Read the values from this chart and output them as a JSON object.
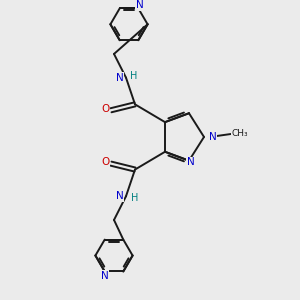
{
  "bg_color": "#ebebeb",
  "bond_color": "#1a1a1a",
  "N_color": "#0000cc",
  "O_color": "#cc0000",
  "H_color": "#008080",
  "figsize": [
    3.0,
    3.0
  ],
  "dpi": 100,
  "xlim": [
    0,
    10
  ],
  "ylim": [
    0,
    10
  ]
}
